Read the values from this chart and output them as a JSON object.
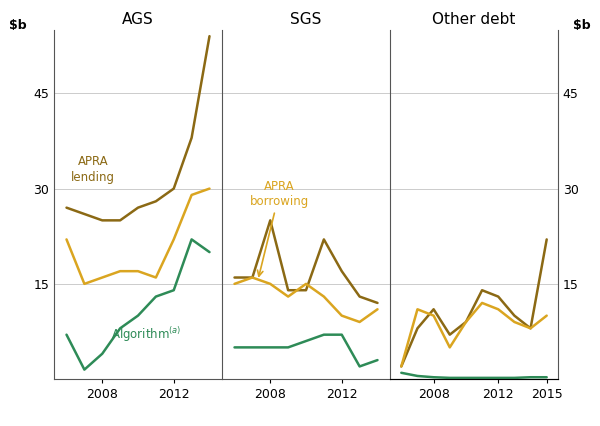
{
  "panel_titles": [
    "AGS",
    "SGS",
    "Other debt"
  ],
  "ylim": [
    0,
    55
  ],
  "yticks": [
    0,
    15,
    30,
    45
  ],
  "ylabel_left": "$b",
  "ylabel_right": "$b",
  "colors": {
    "apra_lending": "#8B6914",
    "apra_borrowing": "#DAA520",
    "algorithm": "#2E8B57"
  },
  "ags_years": [
    2006,
    2007,
    2008,
    2009,
    2010,
    2011,
    2012,
    2013,
    2014
  ],
  "ags_apra_lending": [
    27,
    26,
    25,
    25,
    27,
    28,
    30,
    38,
    54
  ],
  "ags_apra_borrowing": [
    22,
    15,
    16,
    17,
    17,
    16,
    22,
    29,
    30
  ],
  "ags_algorithm": [
    7,
    1.5,
    4,
    8,
    10,
    13,
    14,
    22,
    20
  ],
  "sgs_years": [
    2006,
    2007,
    2008,
    2009,
    2010,
    2011,
    2012,
    2013,
    2014
  ],
  "sgs_apra_lending": [
    16,
    16,
    25,
    14,
    14,
    22,
    17,
    13,
    12
  ],
  "sgs_apra_borrowing": [
    15,
    16,
    15,
    13,
    15,
    13,
    10,
    9,
    11
  ],
  "sgs_algorithm": [
    5,
    5,
    5,
    5,
    6,
    7,
    7,
    2,
    3
  ],
  "other_years": [
    2006,
    2007,
    2008,
    2009,
    2010,
    2011,
    2012,
    2013,
    2014,
    2015
  ],
  "other_apra_lending": [
    2,
    8,
    11,
    7,
    9,
    14,
    13,
    10,
    8,
    22
  ],
  "other_apra_borrowing": [
    2,
    11,
    10,
    5,
    9,
    12,
    11,
    9,
    8,
    10
  ],
  "other_algorithm": [
    1,
    0.5,
    0.3,
    0.2,
    0.2,
    0.2,
    0.2,
    0.2,
    0.3,
    0.3
  ],
  "background_color": "#FFFFFF",
  "grid_color": "#CCCCCC",
  "spine_color": "#555555"
}
